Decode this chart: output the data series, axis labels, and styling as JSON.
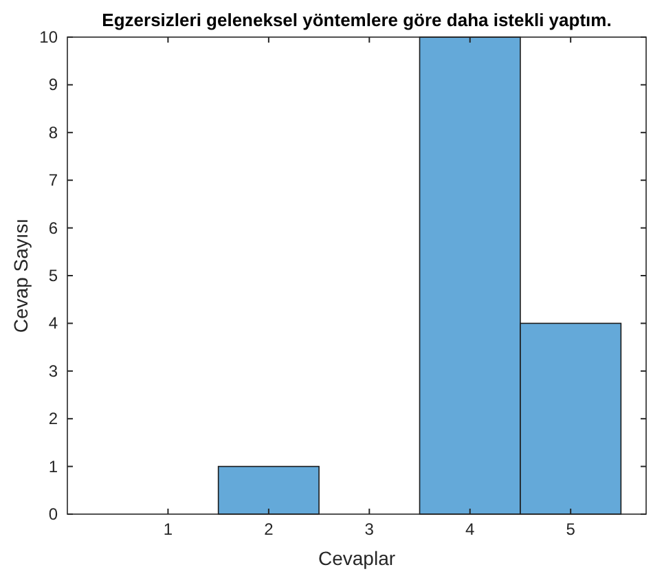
{
  "chart_data": {
    "type": "histogram",
    "title": "Egzersizleri geleneksel yöntemlere göre daha istekli yaptım.",
    "xlabel": "Cevaplar",
    "ylabel": "Cevap Sayısı",
    "bins": [
      0.5,
      1.5,
      2.5,
      3.5,
      4.5,
      5.5
    ],
    "values": [
      0,
      1,
      0,
      10,
      4
    ],
    "color": "#64a9d9",
    "xlim": [
      0,
      5.75
    ],
    "xticks": [
      1,
      2,
      3,
      4,
      5
    ],
    "ylim": [
      0,
      10
    ],
    "yticks": [
      0,
      1,
      2,
      3,
      4,
      5,
      6,
      7,
      8,
      9,
      10
    ],
    "grid": false
  }
}
